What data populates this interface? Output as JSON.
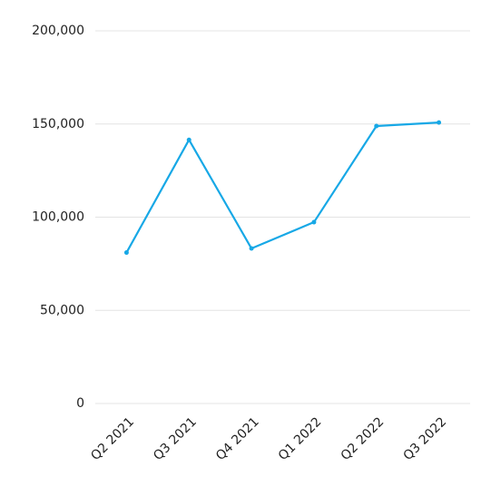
{
  "chart_data": {
    "type": "line",
    "categories": [
      "Q2 2021",
      "Q3 2021",
      "Q4 2021",
      "Q1 2022",
      "Q2 2022",
      "Q3 2022"
    ],
    "values": [
      81000,
      141500,
      83200,
      97300,
      148900,
      150800
    ],
    "color": "#17a8e6",
    "ylim": [
      0,
      200000
    ],
    "yticks": [
      0,
      {
        "value": 50000,
        "label": "50,000"
      },
      {
        "value": 100000,
        "label": "100,000"
      },
      {
        "value": 150000,
        "label": "150,000"
      },
      {
        "value": 200000,
        "label": "200,000"
      }
    ],
    "grid": true
  }
}
